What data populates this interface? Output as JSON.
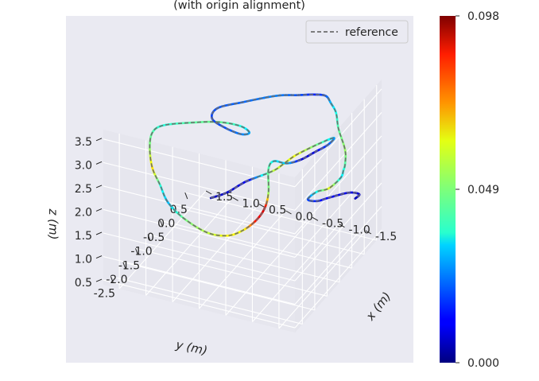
{
  "chart_data": {
    "type": "line",
    "projection": "3d",
    "title": "(with origin alignment)",
    "xlabel": "x (m)",
    "ylabel": "y (m)",
    "zlabel": "z (m)",
    "xlim": [
      1.8,
      -1.8
    ],
    "ylim": [
      -2.8,
      0.7
    ],
    "zlim": [
      0.4,
      3.7
    ],
    "x_ticks": [
      "-1.5",
      "-1.0",
      "-0.5",
      "0.0",
      "0.5",
      "1.0",
      "1.5"
    ],
    "y_ticks": [
      "-2.5",
      "-2.0",
      "-1.5",
      "-1.0",
      "-0.5",
      "0.0",
      "0.5"
    ],
    "z_ticks": [
      "0.5",
      "1.0",
      "1.5",
      "2.0",
      "2.5",
      "3.0",
      "3.5"
    ],
    "legend": {
      "label": "reference",
      "placement": "top-right",
      "line_color": "#777777"
    },
    "colorbar": {
      "colormap": "jet",
      "min": 0.0,
      "max": 0.098,
      "tick_labels": [
        "0.000",
        "0.049",
        "0.098"
      ]
    },
    "background": "#eaeaf2",
    "grid": true,
    "series": [
      {
        "points": [
          {
            "x": 1.2,
            "y": 0.25,
            "z": 0.6,
            "v": 0.006
          },
          {
            "x": 0.9,
            "y": 0.25,
            "z": 0.8,
            "v": 0.008
          },
          {
            "x": 0.6,
            "y": 0.2,
            "z": 1.1,
            "v": 0.01
          },
          {
            "x": 0.4,
            "y": 0.1,
            "z": 1.3,
            "v": 0.012
          },
          {
            "x": 0.0,
            "y": 0.2,
            "z": 1.55,
            "v": 0.055
          },
          {
            "x": -0.2,
            "y": 0.25,
            "z": 1.75,
            "v": 0.058
          },
          {
            "x": -0.4,
            "y": 0.3,
            "z": 1.95,
            "v": 0.06
          },
          {
            "x": -0.8,
            "y": 0.4,
            "z": 2.25,
            "v": 0.045
          },
          {
            "x": -1.0,
            "y": 0.5,
            "z": 2.35,
            "v": 0.03
          },
          {
            "x": -0.9,
            "y": 0.45,
            "z": 2.2,
            "v": 0.02
          },
          {
            "x": -0.7,
            "y": 0.35,
            "z": 2.05,
            "v": 0.01
          },
          {
            "x": -0.5,
            "y": 0.25,
            "z": 1.9,
            "v": 0.008
          },
          {
            "x": -0.3,
            "y": 0.1,
            "z": 1.85,
            "v": 0.03
          },
          {
            "x": -0.1,
            "y": 0.0,
            "z": 1.9,
            "v": 0.035
          },
          {
            "x": 0.0,
            "y": 0.0,
            "z": 1.7,
            "v": 0.045
          },
          {
            "x": 0.0,
            "y": 0.0,
            "z": 1.2,
            "v": 0.05
          },
          {
            "x": 0.1,
            "y": 0.05,
            "z": 0.8,
            "v": 0.09
          },
          {
            "x": 0.2,
            "y": -0.1,
            "z": 0.6,
            "v": 0.085
          },
          {
            "x": 0.3,
            "y": -0.4,
            "z": 0.55,
            "v": 0.06
          },
          {
            "x": 0.4,
            "y": -0.8,
            "z": 0.65,
            "v": 0.062
          },
          {
            "x": 0.6,
            "y": -1.2,
            "z": 0.9,
            "v": 0.055
          },
          {
            "x": 0.9,
            "y": -1.5,
            "z": 1.3,
            "v": 0.048
          },
          {
            "x": 1.1,
            "y": -1.7,
            "z": 1.7,
            "v": 0.03
          },
          {
            "x": 1.2,
            "y": -1.8,
            "z": 2.1,
            "v": 0.04
          },
          {
            "x": 1.3,
            "y": -1.9,
            "z": 2.5,
            "v": 0.065
          },
          {
            "x": 1.3,
            "y": -2.0,
            "z": 3.0,
            "v": 0.05
          },
          {
            "x": 1.2,
            "y": -2.1,
            "z": 3.4,
            "v": 0.045
          },
          {
            "x": 1.0,
            "y": -2.1,
            "z": 3.6,
            "v": 0.04
          },
          {
            "x": 0.6,
            "y": -1.9,
            "z": 3.65,
            "v": 0.045
          },
          {
            "x": 0.2,
            "y": -1.6,
            "z": 3.6,
            "v": 0.048
          },
          {
            "x": -0.1,
            "y": -1.35,
            "z": 3.45,
            "v": 0.04
          },
          {
            "x": -0.2,
            "y": -1.2,
            "z": 3.25,
            "v": 0.03
          },
          {
            "x": 0.0,
            "y": -1.1,
            "z": 3.1,
            "v": 0.025
          },
          {
            "x": 0.3,
            "y": -1.1,
            "z": 3.15,
            "v": 0.02
          },
          {
            "x": 0.5,
            "y": -1.2,
            "z": 3.35,
            "v": 0.018
          },
          {
            "x": 0.4,
            "y": -1.2,
            "z": 3.6,
            "v": 0.02
          },
          {
            "x": 0.0,
            "y": -1.05,
            "z": 3.75,
            "v": 0.022
          },
          {
            "x": -0.5,
            "y": -0.75,
            "z": 3.85,
            "v": 0.025
          },
          {
            "x": -0.8,
            "y": -0.5,
            "z": 3.8,
            "v": 0.02
          },
          {
            "x": -1.0,
            "y": -0.3,
            "z": 3.75,
            "v": 0.015
          },
          {
            "x": -1.1,
            "y": -0.05,
            "z": 3.6,
            "v": 0.02
          },
          {
            "x": -1.15,
            "y": 0.05,
            "z": 3.4,
            "v": 0.03
          },
          {
            "x": -1.2,
            "y": 0.15,
            "z": 3.15,
            "v": 0.038
          },
          {
            "x": -1.2,
            "y": 0.25,
            "z": 2.75,
            "v": 0.045
          },
          {
            "x": -1.3,
            "y": 0.3,
            "z": 2.3,
            "v": 0.052
          },
          {
            "x": -1.3,
            "y": 0.3,
            "z": 2.0,
            "v": 0.045
          },
          {
            "x": -1.2,
            "y": 0.45,
            "z": 1.75,
            "v": 0.04
          },
          {
            "x": -1.1,
            "y": 0.55,
            "z": 1.5,
            "v": 0.035
          },
          {
            "x": -0.9,
            "y": 0.5,
            "z": 1.25,
            "v": 0.06
          },
          {
            "x": -0.7,
            "y": 0.45,
            "z": 1.15,
            "v": 0.04
          },
          {
            "x": -0.6,
            "y": 0.3,
            "z": 1.05,
            "v": 0.02
          },
          {
            "x": -0.8,
            "y": 0.25,
            "z": 1.1,
            "v": 0.015
          },
          {
            "x": -1.0,
            "y": 0.3,
            "z": 1.2,
            "v": 0.012
          },
          {
            "x": -1.3,
            "y": 0.45,
            "z": 1.3,
            "v": 0.01
          },
          {
            "x": -1.45,
            "y": 0.55,
            "z": 1.25,
            "v": 0.008
          },
          {
            "x": -1.35,
            "y": 0.6,
            "z": 1.1,
            "v": 0.006
          }
        ]
      }
    ]
  }
}
